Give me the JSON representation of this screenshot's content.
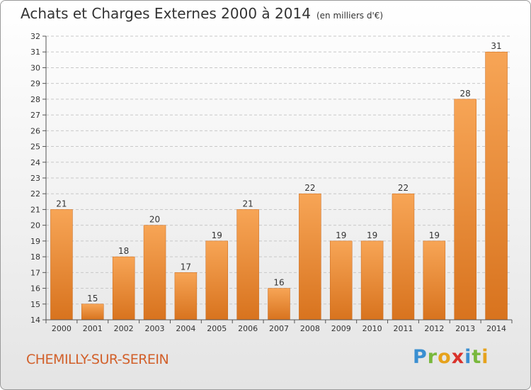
{
  "chart_data": {
    "type": "bar",
    "title": "Achats et Charges Externes 2000 à 2014",
    "subtitle": "(en milliers d'€)",
    "categories": [
      "2000",
      "2001",
      "2002",
      "2003",
      "2004",
      "2005",
      "2006",
      "2007",
      "2008",
      "2009",
      "2010",
      "2011",
      "2012",
      "2013",
      "2014"
    ],
    "values": [
      21,
      15,
      18,
      20,
      17,
      19,
      21,
      16,
      22,
      19,
      19,
      22,
      19,
      28,
      31
    ],
    "ylim": [
      14,
      32
    ],
    "yticks": [
      14,
      15,
      16,
      17,
      18,
      19,
      20,
      21,
      22,
      23,
      24,
      25,
      26,
      27,
      28,
      29,
      30,
      31,
      32
    ],
    "grid": true,
    "bar_color": "#f0913a"
  },
  "footer": {
    "commune": "CHEMILLY-SUR-SEREIN",
    "brand": "Proxiti"
  }
}
